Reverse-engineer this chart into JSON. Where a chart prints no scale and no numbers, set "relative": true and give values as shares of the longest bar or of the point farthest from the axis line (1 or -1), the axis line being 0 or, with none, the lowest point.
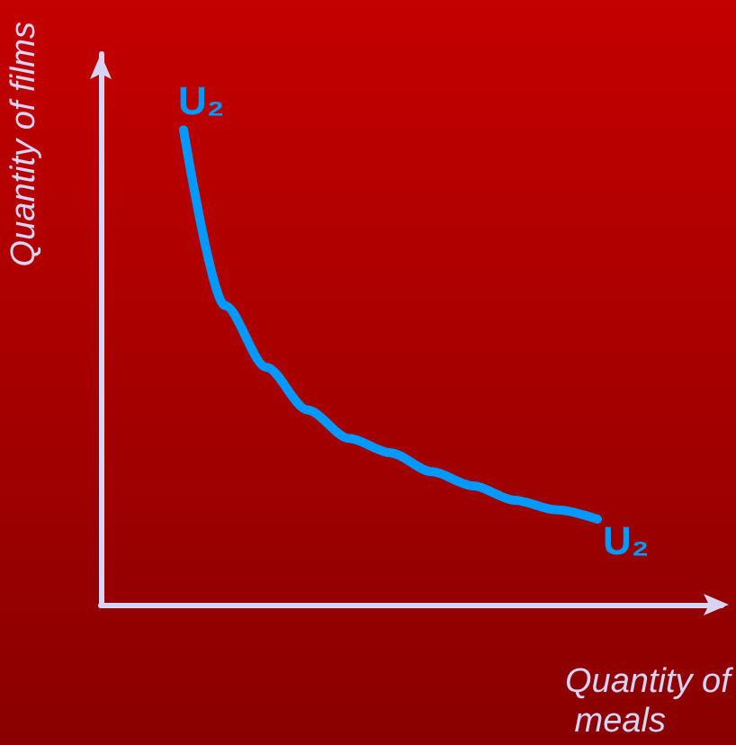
{
  "chart_data": {
    "type": "line",
    "relative": true,
    "xlabel": "Quantity of meals",
    "ylabel": "Quantity of films",
    "categories": [
      null,
      null,
      null,
      null,
      null,
      null,
      null,
      null,
      null,
      null,
      null,
      null,
      null,
      null,
      null,
      null
    ],
    "series": [
      {
        "color": "#0099ff",
        "values": [
          null,
          null,
          1,
          0.63,
          0.5,
          0.41,
          0.35,
          0.32,
          0.28,
          0.25,
          0.22,
          0.2,
          0.18,
          null,
          null,
          null
        ]
      }
    ],
    "annotations": [
      "U₂",
      "U₂"
    ],
    "line_style": "solid"
  }
}
